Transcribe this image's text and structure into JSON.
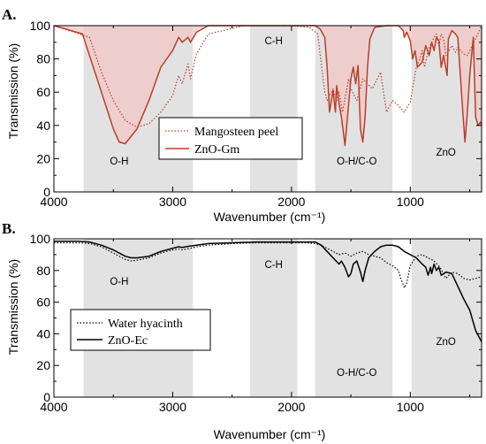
{
  "colors": {
    "shade": "#e2e2e2",
    "mangosteen": "#b8402a",
    "znogm": "#b8402a",
    "fill_pink": "#f2c6c6",
    "black": "#000000"
  },
  "chart_data": [
    {
      "panel": "A.",
      "type": "line",
      "xlabel": "Wavenumber (cm⁻¹)",
      "ylabel": "Transmission (%)",
      "xlim": [
        4000,
        400
      ],
      "ylim": [
        0,
        100
      ],
      "x_ticks": [
        4000,
        3000,
        2000,
        1000
      ],
      "y_ticks": [
        0,
        20,
        40,
        60,
        80,
        100
      ],
      "grid": false,
      "legend_position": "center",
      "regions": [
        {
          "from": 3750,
          "to": 2830,
          "label": "O-H"
        },
        {
          "from": 2350,
          "to": 1950,
          "label": "C-H"
        },
        {
          "from": 1800,
          "to": 1150,
          "label": "O-H/C-O"
        },
        {
          "from": 990,
          "to": 400,
          "label": "ZnO"
        }
      ],
      "series": [
        {
          "name": "Mangosteen peel",
          "style": "dotted",
          "color": "mangosteen",
          "x": [
            4000,
            3700,
            3600,
            3500,
            3400,
            3300,
            3200,
            3100,
            3000,
            2950,
            2920,
            2870,
            2850,
            2800,
            2700,
            2400,
            2300,
            2000,
            1850,
            1780,
            1720,
            1700,
            1650,
            1620,
            1600,
            1570,
            1520,
            1500,
            1450,
            1400,
            1360,
            1320,
            1250,
            1200,
            1150,
            1100,
            1050,
            1000,
            950,
            920,
            900,
            880,
            850,
            800,
            780,
            760,
            740,
            720,
            700,
            650,
            620,
            600,
            550,
            520,
            500,
            450,
            400
          ],
          "y": [
            100,
            93,
            72,
            55,
            43,
            39,
            41,
            48,
            58,
            70,
            65,
            77,
            68,
            83,
            95,
            100,
            100,
            100,
            99,
            95,
            60,
            55,
            62,
            55,
            60,
            48,
            68,
            62,
            55,
            68,
            65,
            62,
            72,
            48,
            55,
            52,
            48,
            54,
            75,
            80,
            85,
            75,
            85,
            93,
            95,
            88,
            95,
            92,
            82,
            88,
            84,
            87,
            83,
            82,
            85,
            92,
            100
          ]
        },
        {
          "name": "ZnO-Gm",
          "style": "solid",
          "color": "znogm",
          "x": [
            4000,
            3760,
            3700,
            3600,
            3500,
            3450,
            3400,
            3300,
            3200,
            3100,
            3000,
            2950,
            2920,
            2870,
            2850,
            2800,
            2700,
            2600,
            2400,
            2000,
            1800,
            1760,
            1720,
            1700,
            1680,
            1650,
            1630,
            1620,
            1600,
            1580,
            1550,
            1500,
            1480,
            1460,
            1440,
            1420,
            1400,
            1380,
            1360,
            1340,
            1300,
            1200,
            1100,
            1060,
            1050,
            1030,
            1000,
            980,
            960,
            940,
            900,
            870,
            840,
            820,
            800,
            780,
            760,
            740,
            720,
            690,
            680,
            650,
            620,
            600,
            560,
            540,
            520,
            500,
            470,
            450,
            430,
            410,
            400
          ],
          "y": [
            100,
            95,
            82,
            60,
            38,
            30,
            29,
            38,
            55,
            75,
            85,
            93,
            90,
            93,
            90,
            96,
            100,
            100,
            100,
            100,
            100,
            98,
            93,
            75,
            48,
            61,
            48,
            64,
            53,
            45,
            28,
            68,
            75,
            65,
            76,
            38,
            30,
            45,
            75,
            92,
            99,
            100,
            100,
            97,
            93,
            96,
            91,
            80,
            85,
            75,
            78,
            88,
            82,
            90,
            85,
            93,
            91,
            75,
            82,
            70,
            92,
            97,
            95,
            93,
            50,
            30,
            48,
            70,
            93,
            45,
            40,
            42,
            40
          ]
        }
      ]
    },
    {
      "panel": "B.",
      "type": "line",
      "xlabel": "Wavenumber (cm⁻¹)",
      "ylabel": "Transmission (%)",
      "xlim": [
        4000,
        400
      ],
      "ylim": [
        0,
        100
      ],
      "x_ticks": [
        4000,
        3000,
        2000,
        1000
      ],
      "y_ticks": [
        0,
        20,
        40,
        60,
        80,
        100
      ],
      "grid": false,
      "legend_position": "bottom-left",
      "regions": [
        {
          "from": 3750,
          "to": 2830,
          "label": "O-H"
        },
        {
          "from": 2350,
          "to": 1950,
          "label": "C-H"
        },
        {
          "from": 1800,
          "to": 1150,
          "label": "O-H/C-O"
        },
        {
          "from": 990,
          "to": 400,
          "label": "ZnO"
        }
      ],
      "series": [
        {
          "name": "Water hyacinth",
          "style": "dotted",
          "color": "black",
          "x": [
            4000,
            3800,
            3700,
            3600,
            3500,
            3400,
            3350,
            3300,
            3200,
            3100,
            3000,
            2950,
            2920,
            2850,
            2800,
            2700,
            2500,
            2300,
            2000,
            1900,
            1800,
            1750,
            1700,
            1650,
            1600,
            1550,
            1500,
            1450,
            1400,
            1350,
            1300,
            1250,
            1200,
            1150,
            1100,
            1080,
            1050,
            1030,
            1000,
            950,
            900,
            850,
            800,
            750,
            700,
            650,
            600,
            550,
            500,
            450,
            400
          ],
          "y": [
            97.5,
            97.5,
            97,
            95,
            91,
            87,
            86,
            86.5,
            88,
            91,
            93,
            93.5,
            93,
            94,
            95,
            96,
            97,
            97.5,
            97.5,
            97.5,
            97,
            96,
            94,
            92,
            90,
            91,
            89,
            91,
            92,
            90,
            89,
            88,
            85,
            83,
            80,
            75,
            69,
            72,
            83,
            89,
            90,
            88,
            86,
            82,
            75,
            79,
            78,
            75,
            74,
            75,
            76
          ]
        },
        {
          "name": "ZnO-Ec",
          "style": "solid",
          "color": "black",
          "x": [
            4000,
            3800,
            3700,
            3600,
            3500,
            3400,
            3350,
            3300,
            3200,
            3100,
            3000,
            2950,
            2920,
            2850,
            2800,
            2700,
            2500,
            2300,
            2000,
            1900,
            1800,
            1750,
            1700,
            1650,
            1600,
            1580,
            1550,
            1520,
            1500,
            1480,
            1450,
            1420,
            1400,
            1380,
            1350,
            1300,
            1250,
            1200,
            1150,
            1100,
            1050,
            1000,
            950,
            900,
            870,
            850,
            830,
            820,
            800,
            780,
            760,
            740,
            700,
            650,
            600,
            550,
            500,
            450,
            400
          ],
          "y": [
            98.5,
            98.5,
            98,
            96,
            93,
            89,
            88,
            88,
            89,
            92,
            94,
            95,
            94.5,
            95.5,
            96,
            97,
            97.5,
            98,
            98,
            98,
            98,
            96,
            92,
            88,
            84,
            86,
            82,
            76,
            78,
            84,
            86,
            79,
            73,
            80,
            88,
            92,
            95,
            96,
            96,
            95,
            92,
            90,
            88,
            84,
            82,
            77,
            82,
            78,
            84,
            80,
            82,
            77,
            79,
            78,
            70,
            62,
            55,
            42,
            35
          ]
        }
      ]
    }
  ]
}
